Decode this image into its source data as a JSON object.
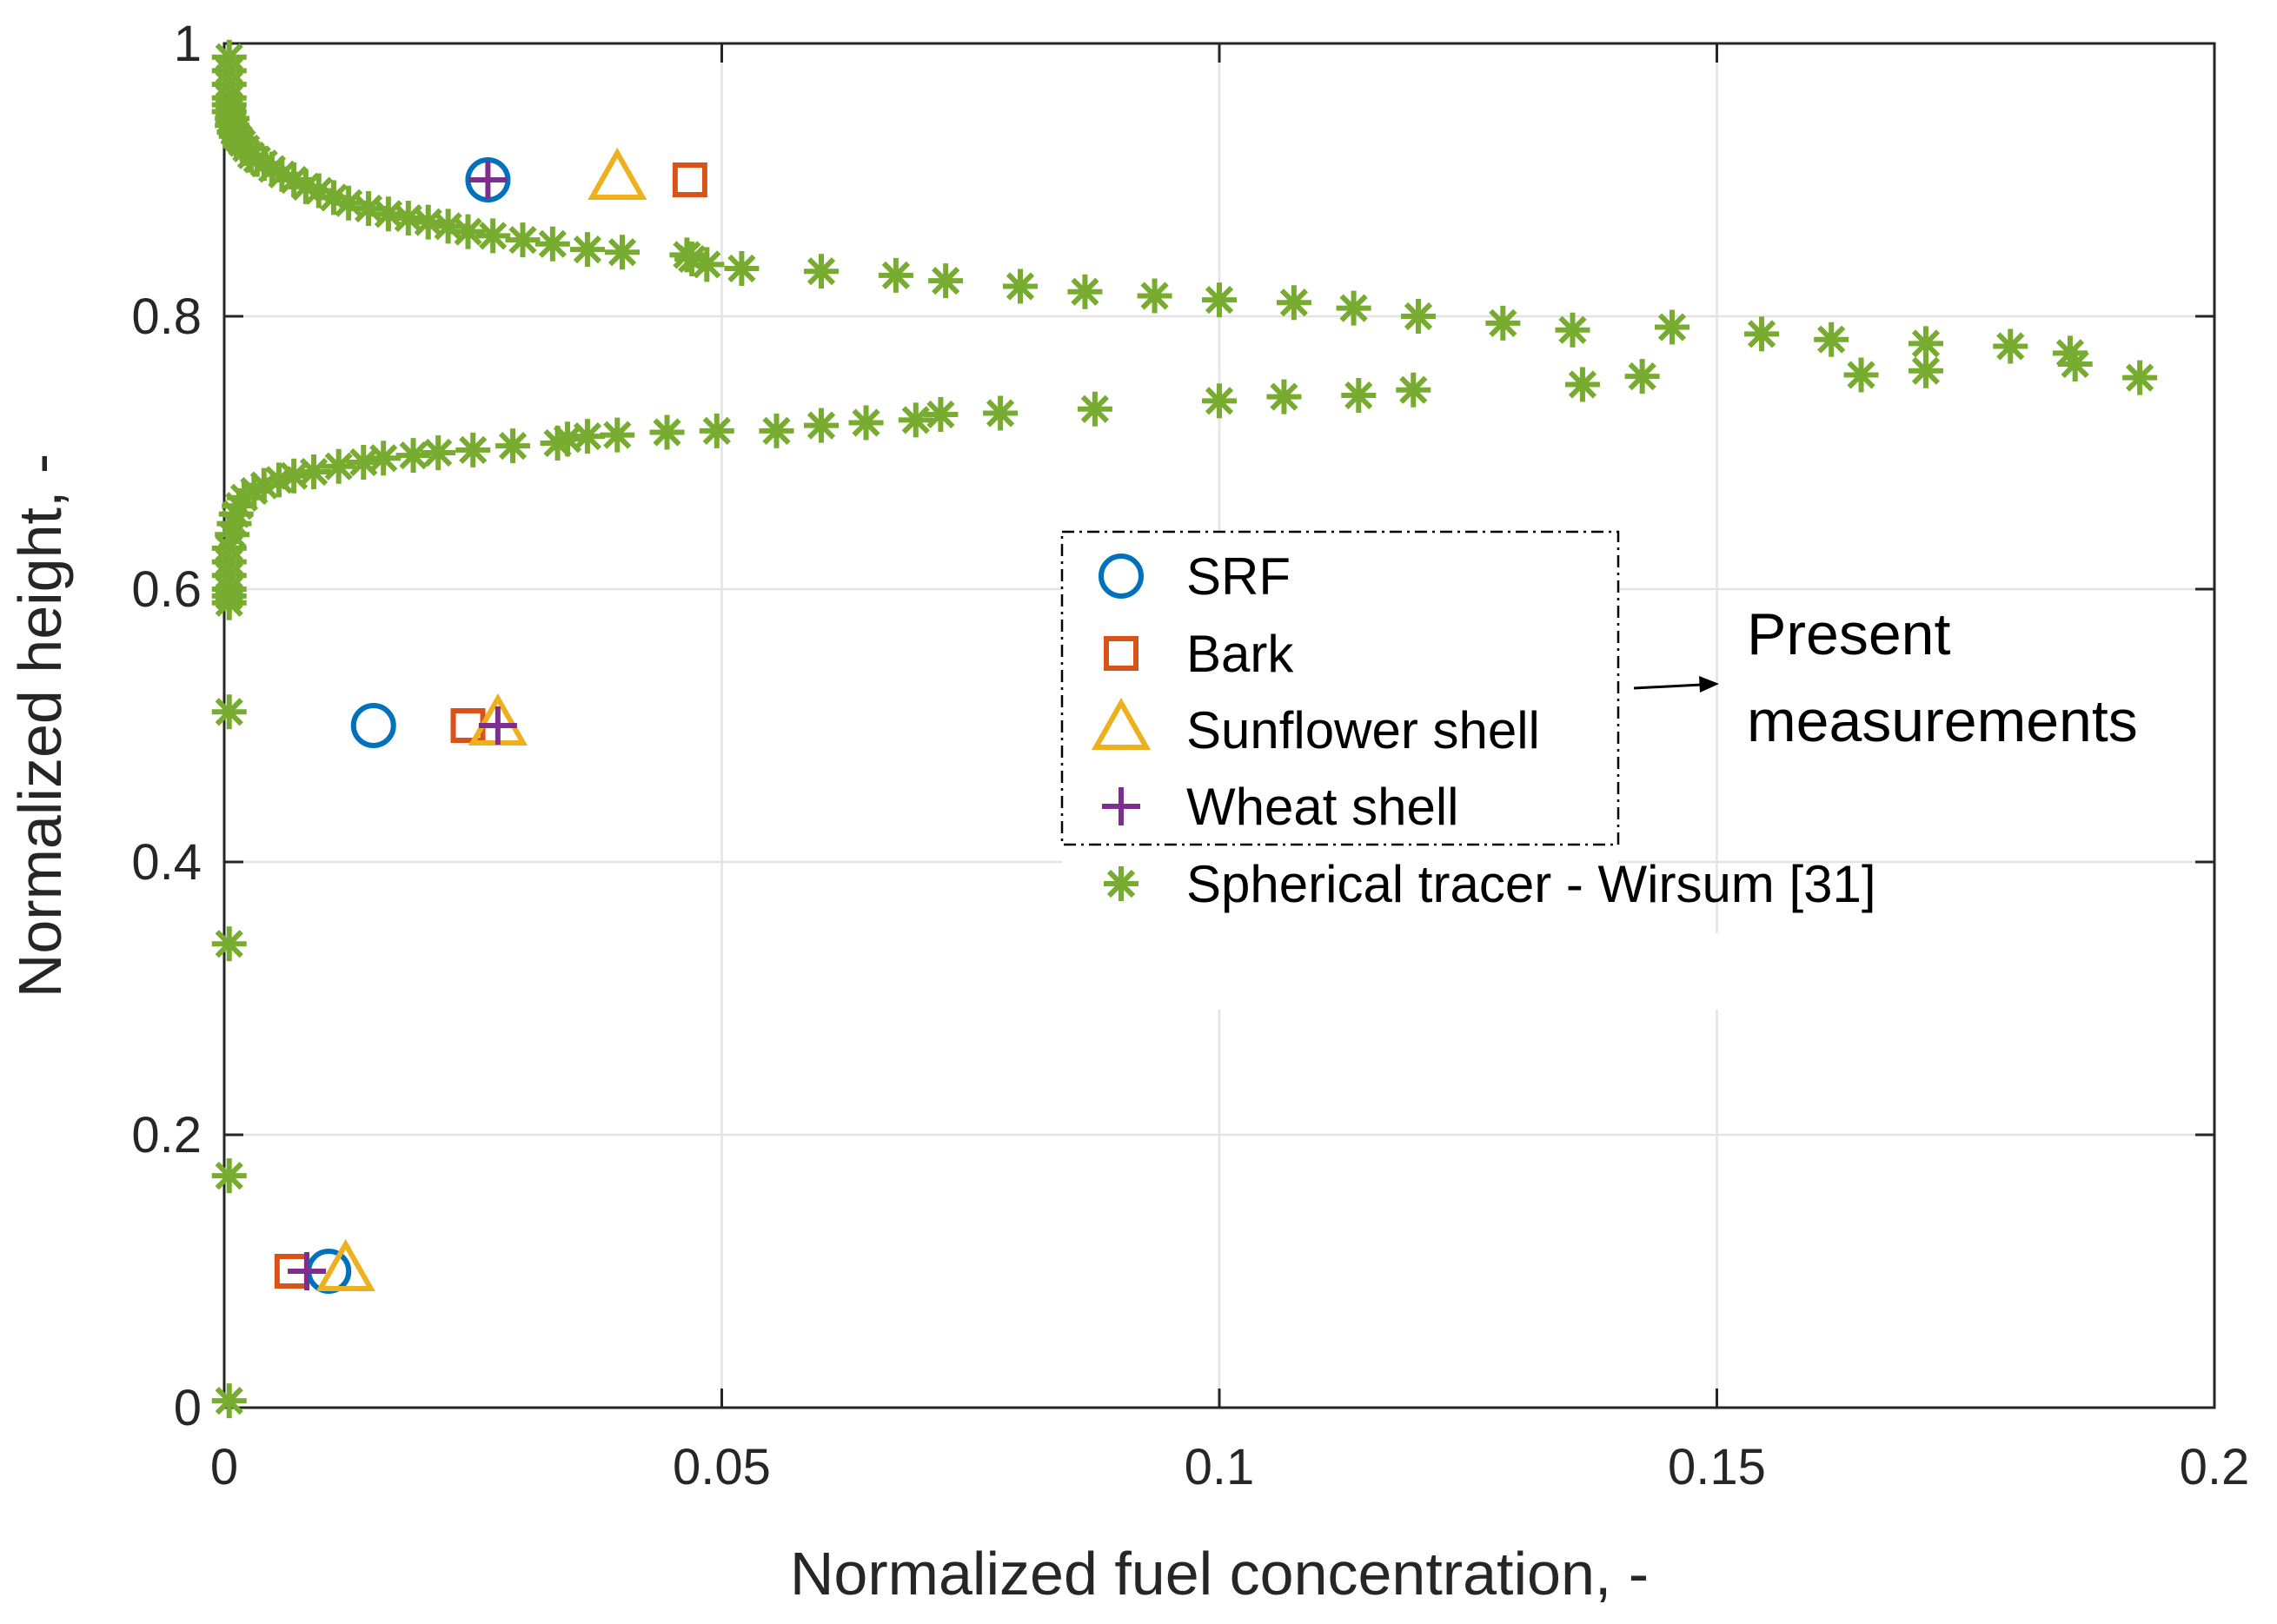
{
  "chart_data": {
    "type": "scatter",
    "xlabel": "Normalized fuel concentration, -",
    "ylabel": "Normalized height, -",
    "xlim": [
      0,
      0.2
    ],
    "ylim": [
      0,
      1
    ],
    "grid": true,
    "x_ticks": [
      0,
      0.05,
      0.1,
      0.15,
      0.2
    ],
    "x_tick_labels": [
      "0",
      "0.05",
      "0.1",
      "0.15",
      "0.2"
    ],
    "y_ticks": [
      0,
      0.2,
      0.4,
      0.6,
      0.8,
      1
    ],
    "y_tick_labels": [
      "0",
      "0.2",
      "0.4",
      "0.6",
      "0.8",
      "1"
    ],
    "legend_position": "center-right",
    "annotation": {
      "lines": [
        "Present",
        "measurements"
      ],
      "points_to": "legend entries SRF, Bark, Sunflower shell, Wheat shell"
    },
    "series": [
      {
        "name": "SRF",
        "marker": "circle",
        "color": "#0072BD",
        "x": [
          0.0265,
          0.015,
          0.0105
        ],
        "y": [
          0.9,
          0.5,
          0.1
        ]
      },
      {
        "name": "Bark",
        "marker": "square",
        "color": "#D95319",
        "x": [
          0.0468,
          0.0245,
          0.0068
        ],
        "y": [
          0.9,
          0.5,
          0.1
        ]
      },
      {
        "name": "Sunflower shell",
        "marker": "triangle",
        "color": "#EDB120",
        "x": [
          0.0395,
          0.0275,
          0.0122
        ],
        "y": [
          0.9,
          0.5,
          0.1
        ]
      },
      {
        "name": "Wheat shell",
        "marker": "plus",
        "color": "#7E2F8E",
        "x": [
          0.0265,
          0.0275,
          0.0083
        ],
        "y": [
          0.9,
          0.5,
          0.1
        ]
      },
      {
        "name": "Spherical tracer - Wirsum [31]",
        "marker": "asterisk",
        "color": "#77AC30",
        "x": [
          0.0005,
          0.0005,
          0.0005,
          0.0005,
          0.0005,
          0.0005,
          0.0008,
          0.0008,
          0.001,
          0.0012,
          0.0015,
          0.0018,
          0.0022,
          0.0027,
          0.0033,
          0.004,
          0.0048,
          0.0058,
          0.007,
          0.0082,
          0.0095,
          0.011,
          0.0125,
          0.0145,
          0.0165,
          0.0185,
          0.0205,
          0.0225,
          0.0245,
          0.027,
          0.03,
          0.033,
          0.0365,
          0.04,
          0.0465,
          0.047,
          0.0485,
          0.052,
          0.06,
          0.0675,
          0.0725,
          0.08,
          0.0865,
          0.0935,
          0.1,
          0.1075,
          0.1135,
          0.12,
          0.1285,
          0.1355,
          0.1455,
          0.1545,
          0.1615,
          0.1645,
          0.171,
          0.171,
          0.1795,
          0.1855,
          0.186,
          0.1925,
          0.0005,
          0.0005,
          0.0005,
          0.0005,
          0.0008,
          0.001,
          0.0012,
          0.0015,
          0.002,
          0.003,
          0.004,
          0.0055,
          0.007,
          0.009,
          0.0115,
          0.014,
          0.016,
          0.019,
          0.0215,
          0.025,
          0.029,
          0.0335,
          0.0345,
          0.0365,
          0.0395,
          0.0445,
          0.0495,
          0.0555,
          0.06,
          0.0645,
          0.0695,
          0.072,
          0.078,
          0.0875,
          0.1,
          0.1065,
          0.114,
          0.1195,
          0.1365,
          0.1425,
          0.0005,
          0.0005,
          0.0005,
          0.0005,
          0.0005,
          0.0005
        ],
        "y": [
          0.99,
          0.98,
          0.97,
          0.96,
          0.955,
          0.95,
          0.945,
          0.94,
          0.935,
          0.932,
          0.93,
          0.927,
          0.923,
          0.918,
          0.915,
          0.912,
          0.908,
          0.904,
          0.9,
          0.895,
          0.892,
          0.887,
          0.883,
          0.879,
          0.875,
          0.872,
          0.869,
          0.866,
          0.862,
          0.859,
          0.856,
          0.853,
          0.849,
          0.847,
          0.845,
          0.842,
          0.838,
          0.835,
          0.833,
          0.83,
          0.826,
          0.822,
          0.818,
          0.815,
          0.812,
          0.81,
          0.806,
          0.8,
          0.795,
          0.79,
          0.792,
          0.787,
          0.783,
          0.757,
          0.78,
          0.76,
          0.778,
          0.773,
          0.765,
          0.755,
          0.6,
          0.61,
          0.62,
          0.63,
          0.64,
          0.648,
          0.655,
          0.661,
          0.667,
          0.672,
          0.676,
          0.68,
          0.683,
          0.686,
          0.69,
          0.693,
          0.696,
          0.698,
          0.7,
          0.702,
          0.705,
          0.707,
          0.71,
          0.712,
          0.713,
          0.715,
          0.716,
          0.716,
          0.72,
          0.722,
          0.724,
          0.728,
          0.729,
          0.732,
          0.738,
          0.741,
          0.742,
          0.746,
          0.75,
          0.756,
          0.51,
          0.34,
          0.17,
          0.005,
          0.59,
          0.595
        ]
      }
    ]
  }
}
